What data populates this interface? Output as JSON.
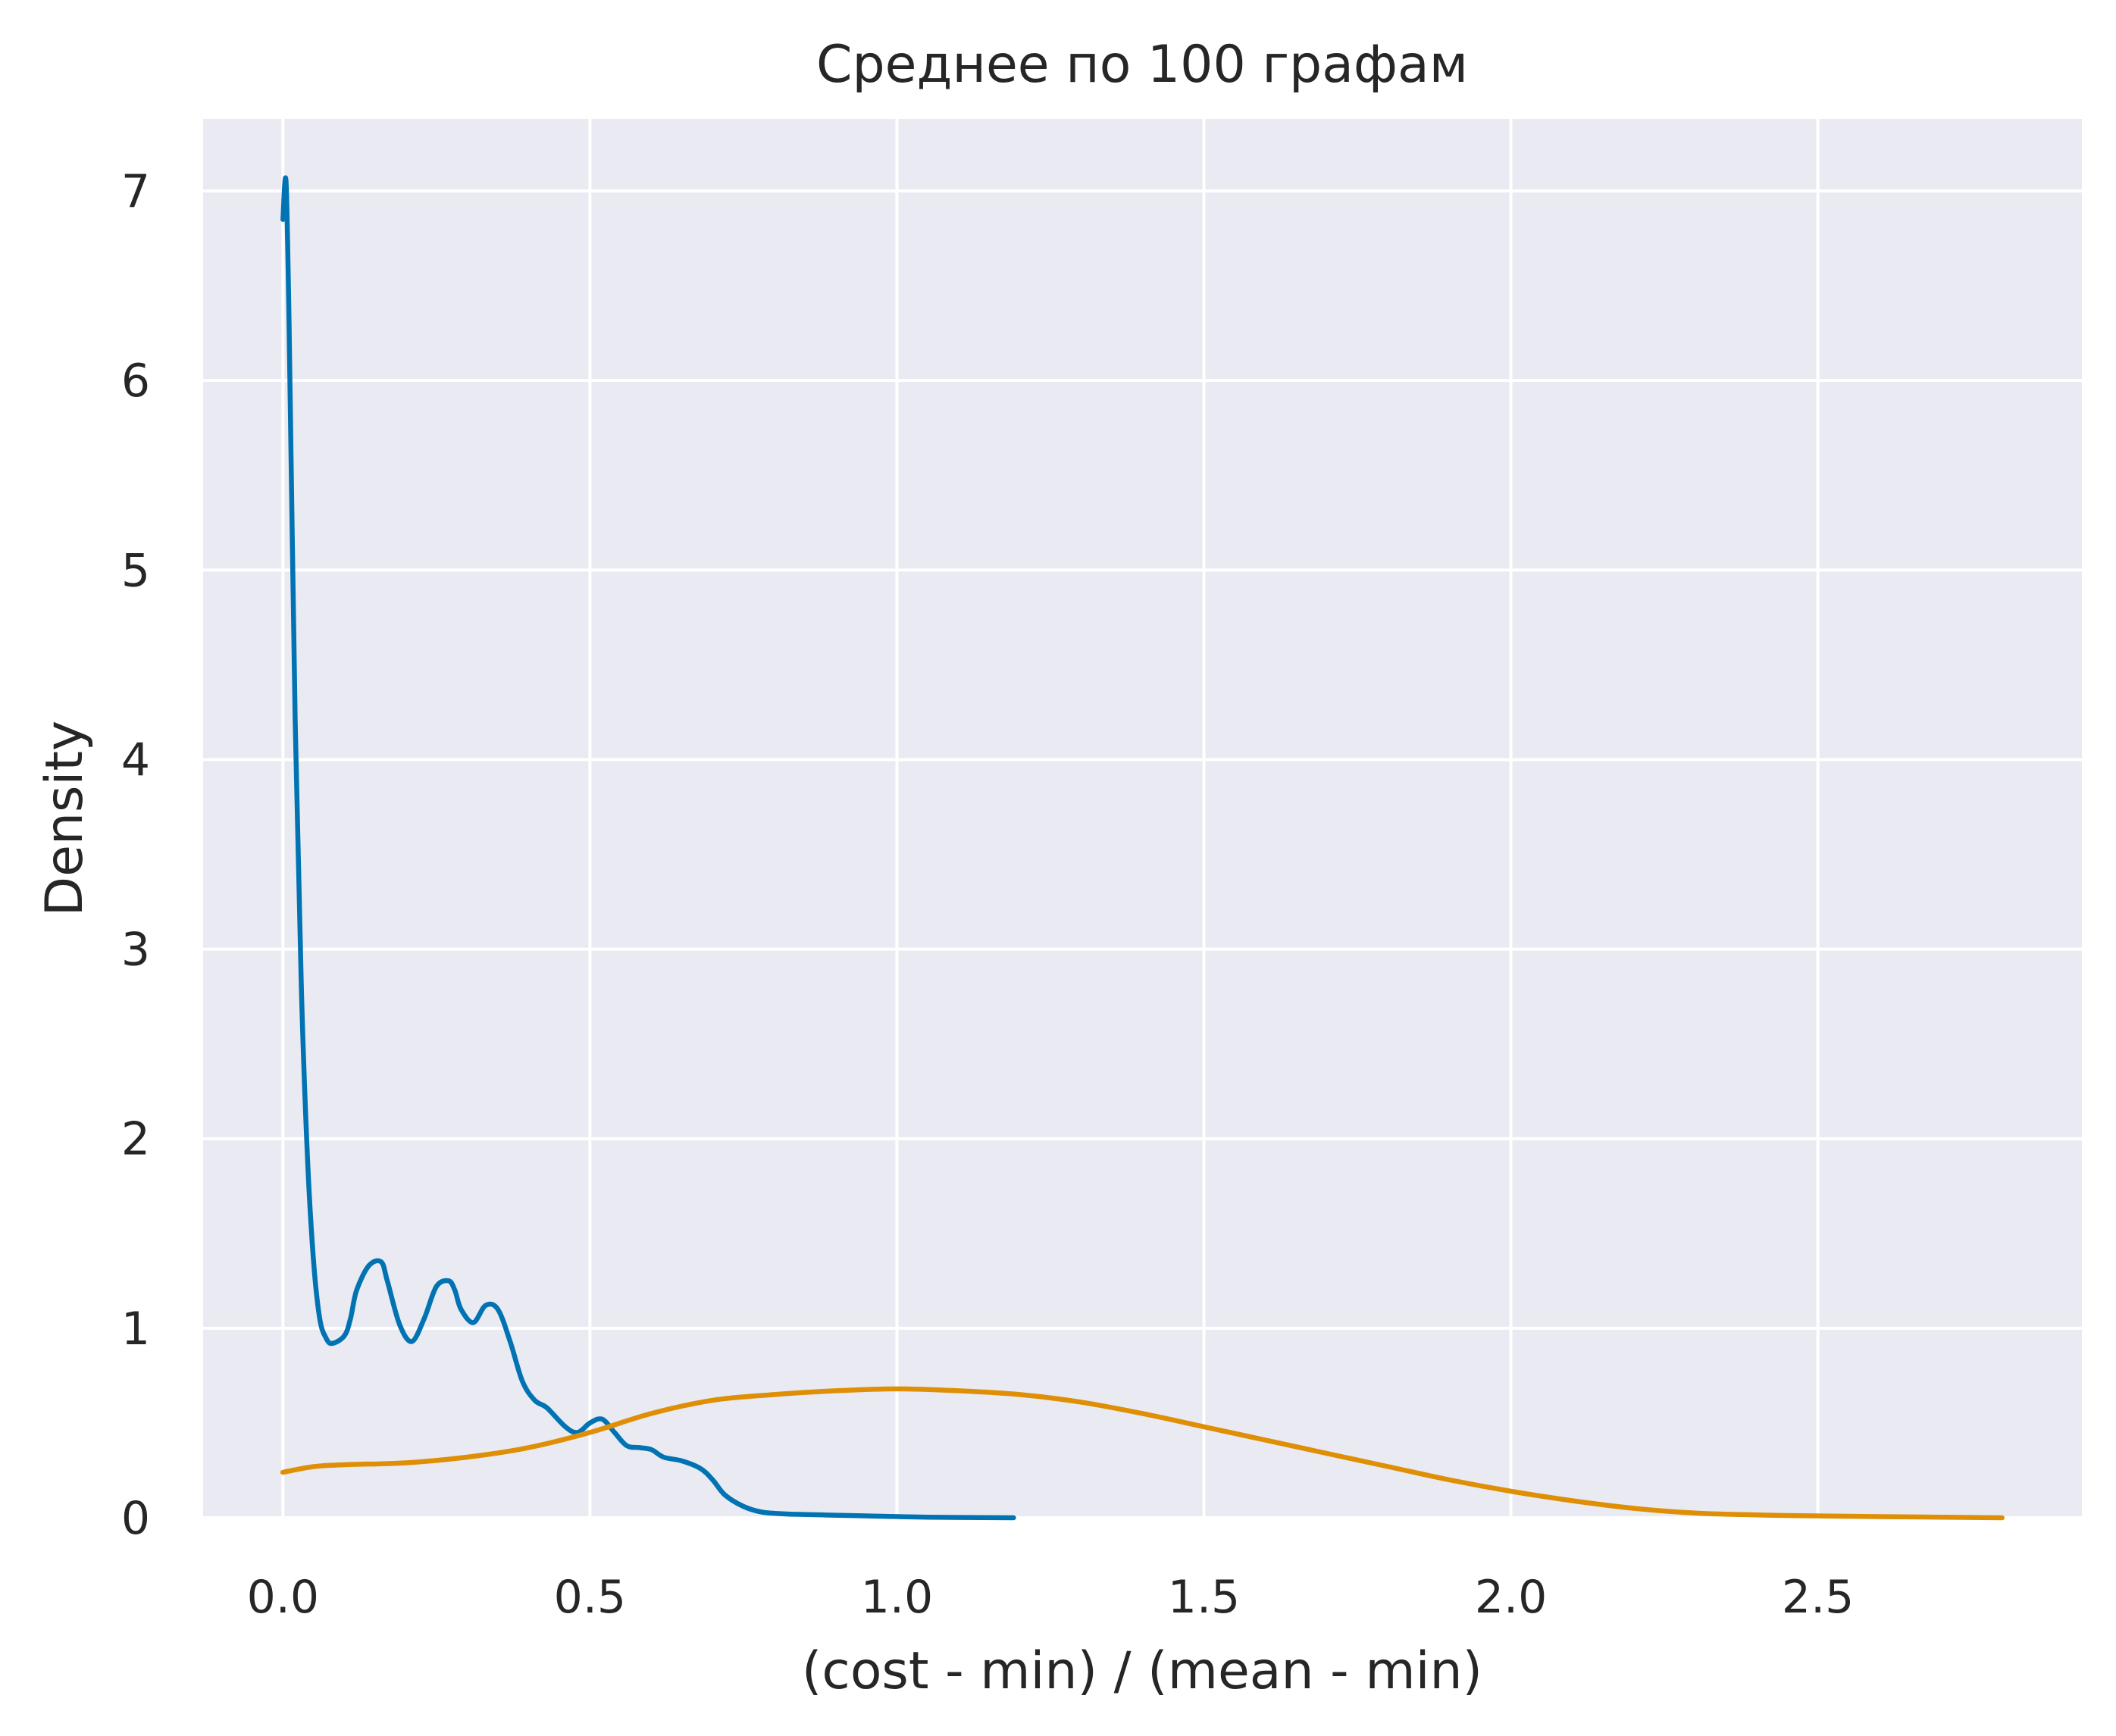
{
  "chart_data": {
    "type": "line",
    "title": "Среднее по 100 графам",
    "xlabel": "(cost - min) / (mean - min)",
    "ylabel": "Density",
    "xlim": [
      -0.13,
      2.93
    ],
    "ylim": [
      0,
      7.38
    ],
    "xticks": [
      0.0,
      0.5,
      1.0,
      1.5,
      2.0,
      2.5
    ],
    "xtick_labels": [
      "0.0",
      "0.5",
      "1.0",
      "1.5",
      "2.0",
      "2.5"
    ],
    "yticks": [
      0,
      1,
      2,
      3,
      4,
      5,
      6,
      7
    ],
    "ytick_labels": [
      "0",
      "1",
      "2",
      "3",
      "4",
      "5",
      "6",
      "7"
    ],
    "grid": true,
    "background": "#eaeaf2",
    "series": [
      {
        "color": "#0173b2",
        "x": [
          0.0,
          0.005,
          0.01,
          0.02,
          0.03,
          0.04,
          0.05,
          0.06,
          0.07,
          0.08,
          0.1,
          0.11,
          0.12,
          0.14,
          0.16,
          0.17,
          0.19,
          0.21,
          0.23,
          0.25,
          0.27,
          0.28,
          0.29,
          0.31,
          0.33,
          0.35,
          0.37,
          0.39,
          0.41,
          0.43,
          0.46,
          0.48,
          0.5,
          0.52,
          0.54,
          0.56,
          0.58,
          0.6,
          0.62,
          0.65,
          0.68,
          0.7,
          0.72,
          0.75,
          0.78,
          0.82,
          0.88,
          0.95,
          1.05,
          1.19
        ],
        "y": [
          6.85,
          7.05,
          6.3,
          4.2,
          2.8,
          1.9,
          1.35,
          1.05,
          0.95,
          0.92,
          0.96,
          1.05,
          1.2,
          1.33,
          1.35,
          1.25,
          1.02,
          0.93,
          1.05,
          1.22,
          1.25,
          1.2,
          1.1,
          1.03,
          1.12,
          1.1,
          0.93,
          0.72,
          0.62,
          0.58,
          0.48,
          0.45,
          0.5,
          0.52,
          0.45,
          0.38,
          0.37,
          0.36,
          0.32,
          0.3,
          0.26,
          0.2,
          0.12,
          0.06,
          0.03,
          0.02,
          0.015,
          0.01,
          0.003,
          0.0
        ]
      },
      {
        "color": "#de8f05",
        "x": [
          0.0,
          0.05,
          0.1,
          0.2,
          0.3,
          0.4,
          0.5,
          0.6,
          0.7,
          0.8,
          0.9,
          1.0,
          1.1,
          1.2,
          1.3,
          1.4,
          1.5,
          1.6,
          1.7,
          1.8,
          1.9,
          2.0,
          2.1,
          2.2,
          2.3,
          2.4,
          2.5,
          2.6,
          2.7,
          2.8
        ],
        "y": [
          0.24,
          0.27,
          0.28,
          0.29,
          0.32,
          0.37,
          0.45,
          0.55,
          0.62,
          0.65,
          0.67,
          0.68,
          0.67,
          0.65,
          0.61,
          0.55,
          0.48,
          0.41,
          0.34,
          0.27,
          0.2,
          0.14,
          0.09,
          0.05,
          0.025,
          0.015,
          0.01,
          0.006,
          0.003,
          0.0
        ]
      }
    ]
  }
}
